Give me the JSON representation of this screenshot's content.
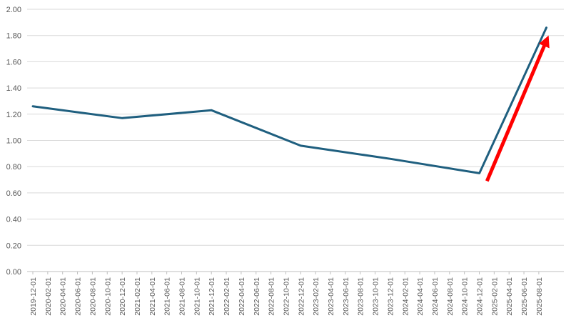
{
  "chart_data": {
    "type": "line",
    "title": "",
    "xlabel": "",
    "ylabel": "",
    "ylim": [
      0,
      2
    ],
    "yticks": [
      "0.00",
      "0.20",
      "0.40",
      "0.60",
      "0.80",
      "1.00",
      "1.20",
      "1.40",
      "1.60",
      "1.80",
      "2.00"
    ],
    "grid": true,
    "legend": "none",
    "line_color": "#1f5f7f",
    "arrow_color": "#ff0000",
    "categories": [
      "2019-12-01",
      "2020-02-01",
      "2020-04-01",
      "2020-06-01",
      "2020-08-01",
      "2020-10-01",
      "2020-12-01",
      "2021-02-01",
      "2021-04-01",
      "2021-06-01",
      "2021-08-01",
      "2021-10-01",
      "2021-12-01",
      "2022-02-01",
      "2022-04-01",
      "2022-06-01",
      "2022-08-01",
      "2022-10-01",
      "2022-12-01",
      "2023-02-01",
      "2023-04-01",
      "2023-06-01",
      "2023-08-01",
      "2023-10-01",
      "2023-12-01",
      "2024-02-01",
      "2024-04-01",
      "2024-06-01",
      "2024-08-01",
      "2024-10-01",
      "2024-12-01",
      "2025-02-01",
      "2025-04-01",
      "2025-06-01",
      "2025-08-01"
    ],
    "series": [
      {
        "points": [
          {
            "x": "2019-12-01",
            "y": 1.26
          },
          {
            "x": "2020-12-01",
            "y": 1.17
          },
          {
            "x": "2021-12-01",
            "y": 1.23
          },
          {
            "x": "2022-12-01",
            "y": 0.96
          },
          {
            "x": "2023-12-01",
            "y": 0.86
          },
          {
            "x": "2024-12-01",
            "y": 0.75
          },
          {
            "x": "2025-09-01",
            "y": 1.86
          }
        ]
      }
    ],
    "annotation": {
      "type": "arrow",
      "from": {
        "x": "2025-01-01",
        "y": 0.69
      },
      "to": {
        "x": "2025-09-01",
        "y": 1.76
      }
    }
  }
}
